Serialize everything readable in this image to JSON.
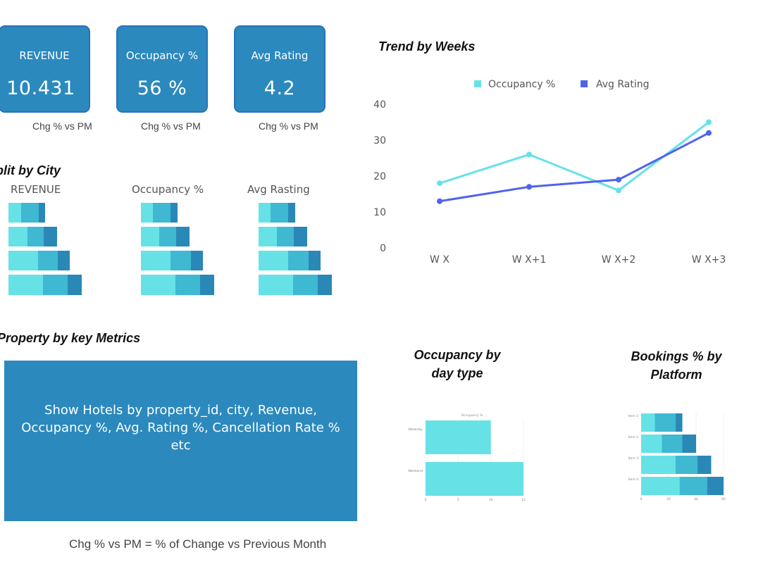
{
  "kpis": [
    {
      "title": "REVENUE",
      "value": "10.431",
      "sub": "Chg % vs PM"
    },
    {
      "title": "Occupancy %",
      "value": "56 %",
      "sub": "Chg % vs PM"
    },
    {
      "title": "Avg Rating",
      "value": "4.2",
      "sub": "Chg % vs PM"
    }
  ],
  "split_by_city": {
    "title": "Split by City",
    "labels": [
      "REVENUE",
      "Occupancy %",
      "Avg Rasting"
    ]
  },
  "property": {
    "title": "Property by key Metrics",
    "text": "Show Hotels by property_id, city, Revenue, Occupancy %, Avg. Rating %, Cancellation Rate % etc"
  },
  "footnote": "Chg % vs PM = % of Change vs Previous Month",
  "colors": {
    "light": "#66e2e6",
    "mid": "#3fb8d2",
    "dark": "#2a88b6",
    "card": "#2b89bd",
    "occupancy_line": "#66e2e6",
    "rating_line": "#4f63ee"
  },
  "chart_data": [
    {
      "type": "line",
      "title": "Trend by Weeks",
      "categories": [
        "W X",
        "W X+1",
        "W X+2",
        "W X+3"
      ],
      "series": [
        {
          "name": "Occupancy %",
          "values": [
            18,
            26,
            16,
            35
          ]
        },
        {
          "name": "Avg Rating",
          "values": [
            13,
            17,
            19,
            32
          ]
        }
      ],
      "ylim": [
        0,
        40
      ],
      "yticks": [
        "0",
        "10",
        "20",
        "30",
        "40"
      ],
      "legend": "top"
    },
    {
      "type": "bar",
      "title": "Occupancy by day type",
      "orientation": "horizontal",
      "legend_label": "Occupancy %",
      "categories": [
        "Weekday",
        "Weekend"
      ],
      "values": [
        10,
        15
      ],
      "xlim": [
        0,
        15
      ],
      "xticks": [
        "0",
        "5",
        "10",
        "15"
      ]
    },
    {
      "type": "bar",
      "title": "Bookings % by Platform",
      "orientation": "horizontal",
      "stacked": true,
      "categories": [
        "Item 1",
        "Item 2",
        "Item 3",
        "Item 4"
      ],
      "series": [
        {
          "values": [
            10,
            15,
            25,
            28
          ]
        },
        {
          "values": [
            15,
            15,
            16,
            20
          ]
        },
        {
          "values": [
            5,
            10,
            10,
            12
          ]
        }
      ],
      "xlim": [
        0,
        60
      ],
      "xticks": [
        "0",
        "20",
        "40",
        "60"
      ]
    },
    {
      "type": "bar",
      "orientation": "horizontal",
      "stacked": true,
      "label": "REVENUE",
      "series": [
        {
          "values": [
            18,
            27,
            42,
            49
          ]
        },
        {
          "values": [
            25,
            23,
            28,
            35
          ]
        },
        {
          "values": [
            9,
            19,
            17,
            20
          ]
        }
      ]
    },
    {
      "type": "bar",
      "orientation": "horizontal",
      "stacked": true,
      "label": "Occupancy %",
      "series": [
        {
          "values": [
            17,
            26,
            42,
            49
          ]
        },
        {
          "values": [
            25,
            24,
            29,
            35
          ]
        },
        {
          "values": [
            10,
            19,
            17,
            20
          ]
        }
      ]
    },
    {
      "type": "bar",
      "orientation": "horizontal",
      "stacked": true,
      "label": "Avg Rasting",
      "series": [
        {
          "values": [
            17,
            26,
            42,
            49
          ]
        },
        {
          "values": [
            25,
            24,
            29,
            35
          ]
        },
        {
          "values": [
            10,
            19,
            17,
            20
          ]
        }
      ]
    }
  ]
}
